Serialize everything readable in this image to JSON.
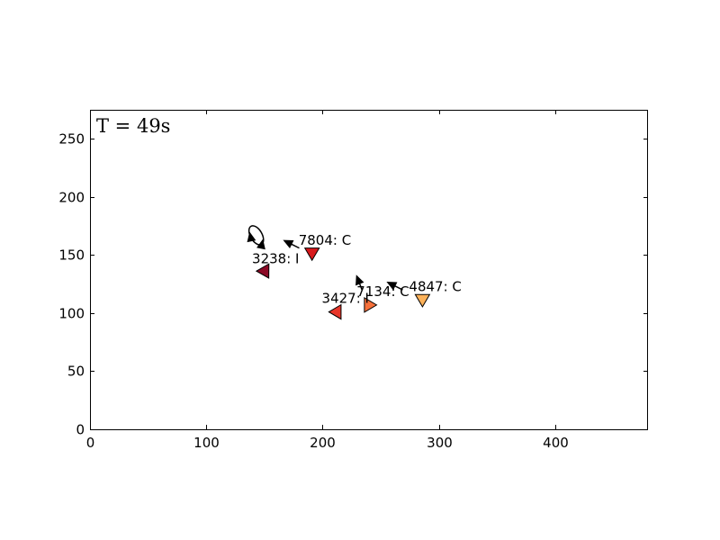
{
  "chart_data": {
    "type": "scatter",
    "annotation": "T = 49s",
    "xlim": [
      0,
      480
    ],
    "ylim": [
      0,
      275
    ],
    "x_ticks": [
      0,
      100,
      200,
      300,
      400
    ],
    "y_ticks": [
      0,
      50,
      100,
      150,
      200,
      250
    ],
    "grid": false,
    "agents": [
      {
        "id": "7804",
        "label": "7804: C",
        "x": 191,
        "y": 151,
        "heading": "down",
        "color": "#d7191c"
      },
      {
        "id": "3238",
        "label": "3238: I",
        "x": 151,
        "y": 135,
        "heading": "down-right",
        "color": "#8b0a26"
      },
      {
        "id": "3427",
        "label": "3427: I",
        "x": 211,
        "y": 101,
        "heading": "left",
        "color": "#e8362a"
      },
      {
        "id": "7134",
        "label": "7134: C",
        "x": 241,
        "y": 107,
        "heading": "right",
        "color": "#f6703a"
      },
      {
        "id": "4847",
        "label": "4847: C",
        "x": 286,
        "y": 111,
        "heading": "down",
        "color": "#fdb25a"
      }
    ],
    "arrows": [
      {
        "from": [
          180,
          156
        ],
        "to": [
          166,
          163
        ]
      },
      {
        "from": [
          234,
          120
        ],
        "to": [
          229,
          133
        ]
      },
      {
        "from": [
          269,
          120
        ],
        "to": [
          255,
          127
        ]
      }
    ],
    "loop": {
      "cx": 143,
      "cy": 167,
      "rx": 5,
      "ry": 9
    }
  }
}
